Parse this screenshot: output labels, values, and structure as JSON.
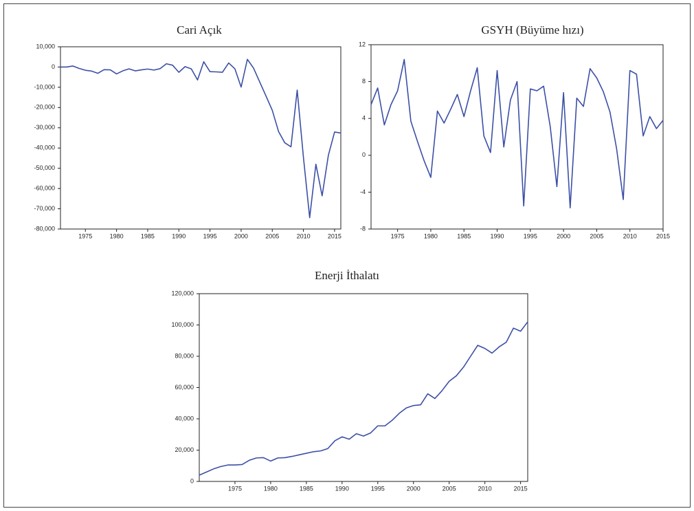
{
  "chart_data": [
    {
      "type": "line",
      "title": "Cari Açık",
      "x": [
        1971,
        1972,
        1973,
        1974,
        1975,
        1976,
        1977,
        1978,
        1979,
        1980,
        1981,
        1982,
        1983,
        1984,
        1985,
        1986,
        1987,
        1988,
        1989,
        1990,
        1991,
        1992,
        1993,
        1994,
        1995,
        1996,
        1997,
        1998,
        1999,
        2000,
        2001,
        2002,
        2003,
        2004,
        2005,
        2006,
        2007,
        2008,
        2009,
        2010,
        2011,
        2012,
        2013,
        2014,
        2015,
        2016
      ],
      "series": [
        {
          "color": "#3b4fa6",
          "values": [
            0,
            0,
            500,
            -700,
            -1600,
            -2000,
            -3100,
            -1300,
            -1400,
            -3400,
            -1900,
            -900,
            -1900,
            -1400,
            -1000,
            -1500,
            -800,
            1600,
            900,
            -2600,
            200,
            -900,
            -6400,
            2600,
            -2300,
            -2400,
            -2600,
            2000,
            -900,
            -9900,
            3800,
            -600,
            -7500,
            -14400,
            -21400,
            -31800,
            -37400,
            -39400,
            -11400,
            -44600,
            -74400,
            -48000,
            -63600,
            -43600,
            -32100,
            -32600
          ]
        }
      ],
      "xlim": [
        1971,
        2016
      ],
      "xticks": [
        1975,
        1980,
        1985,
        1990,
        1995,
        2000,
        2005,
        2010,
        2015
      ],
      "ylim": [
        -80000,
        10000
      ],
      "yticks": [
        {
          "value": -80000,
          "label": "-80,000"
        },
        {
          "value": -70000,
          "label": "-70,000"
        },
        {
          "value": -60000,
          "label": "-60,000"
        },
        {
          "value": -50000,
          "label": "-50,000"
        },
        {
          "value": -40000,
          "label": "-40,000"
        },
        {
          "value": -30000,
          "label": "-30,000"
        },
        {
          "value": -20000,
          "label": "-20,000"
        },
        {
          "value": -10000,
          "label": "-10,000"
        },
        0,
        {
          "value": 10000,
          "label": "10,000"
        }
      ]
    },
    {
      "type": "line",
      "title": "GSYH (Büyüme hızı)",
      "x": [
        1971,
        1972,
        1973,
        1974,
        1975,
        1976,
        1977,
        1978,
        1979,
        1980,
        1981,
        1982,
        1983,
        1984,
        1985,
        1986,
        1987,
        1988,
        1989,
        1990,
        1991,
        1992,
        1993,
        1994,
        1995,
        1996,
        1997,
        1998,
        1999,
        2000,
        2001,
        2002,
        2003,
        2004,
        2005,
        2006,
        2007,
        2008,
        2009,
        2010,
        2011,
        2012,
        2013,
        2014,
        2015
      ],
      "series": [
        {
          "color": "#3b4fa6",
          "values": [
            5.5,
            7.3,
            3.3,
            5.5,
            7.0,
            10.4,
            3.7,
            1.5,
            -0.6,
            -2.4,
            4.8,
            3.5,
            5.0,
            6.6,
            4.2,
            7.0,
            9.5,
            2.1,
            0.3,
            9.2,
            0.9,
            6.0,
            8.0,
            -5.5,
            7.2,
            7.0,
            7.5,
            3.1,
            -3.4,
            6.8,
            -5.7,
            6.2,
            5.3,
            9.4,
            8.4,
            6.9,
            4.7,
            0.7,
            -4.8,
            9.2,
            8.8,
            2.1,
            4.2,
            2.9,
            3.8
          ]
        }
      ],
      "xlim": [
        1971,
        2015
      ],
      "xticks": [
        1975,
        1980,
        1985,
        1990,
        1995,
        2000,
        2005,
        2010,
        2015
      ],
      "ylim": [
        -8,
        12
      ],
      "yticks": [
        -8,
        -4,
        0,
        4,
        8,
        12
      ]
    },
    {
      "type": "line",
      "title": "Enerji İthalatı",
      "x": [
        1970,
        1971,
        1972,
        1973,
        1974,
        1975,
        1976,
        1977,
        1978,
        1979,
        1980,
        1981,
        1982,
        1983,
        1984,
        1985,
        1986,
        1987,
        1988,
        1989,
        1990,
        1991,
        1992,
        1993,
        1994,
        1995,
        1996,
        1997,
        1998,
        1999,
        2000,
        2001,
        2002,
        2003,
        2004,
        2005,
        2006,
        2007,
        2008,
        2009,
        2010,
        2011,
        2012,
        2013,
        2014,
        2015,
        2016
      ],
      "series": [
        {
          "color": "#3b4fa6",
          "values": [
            4000,
            6000,
            8000,
            9500,
            10500,
            10500,
            10800,
            13500,
            15000,
            15200,
            13000,
            15000,
            15200,
            16000,
            17000,
            18000,
            19000,
            19500,
            21000,
            26000,
            28500,
            27000,
            30500,
            29000,
            31000,
            35500,
            35500,
            39000,
            43500,
            47000,
            48500,
            49000,
            56000,
            53000,
            58000,
            64000,
            67500,
            73000,
            80000,
            87000,
            85000,
            82000,
            86000,
            89000,
            98000,
            96000,
            102000
          ]
        }
      ],
      "xlim": [
        1970,
        2016
      ],
      "xticks": [
        1975,
        1980,
        1985,
        1990,
        1995,
        2000,
        2005,
        2010,
        2015
      ],
      "ylim": [
        0,
        120000
      ],
      "yticks": [
        0,
        {
          "value": 20000,
          "label": "20,000"
        },
        {
          "value": 40000,
          "label": "40,000"
        },
        {
          "value": 60000,
          "label": "60,000"
        },
        {
          "value": 80000,
          "label": "80,000"
        },
        {
          "value": 100000,
          "label": "100,000"
        },
        {
          "value": 120000,
          "label": "120,000"
        }
      ]
    }
  ]
}
